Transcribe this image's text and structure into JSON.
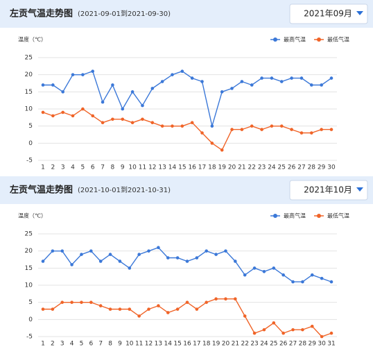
{
  "chart_data": [
    {
      "type": "line",
      "title": "左贡气温走势图",
      "subtitle": "(2021-09-01到2021-09-30)",
      "selector": "2021年09月",
      "ylabel": "温度（℃）",
      "categories": [
        "1",
        "2",
        "3",
        "4",
        "5",
        "6",
        "7",
        "8",
        "9",
        "10",
        "11",
        "12",
        "13",
        "14",
        "15",
        "16",
        "17",
        "18",
        "19",
        "20",
        "21",
        "22",
        "23",
        "24",
        "25",
        "26",
        "27",
        "28",
        "29",
        "30"
      ],
      "series": [
        {
          "name": "最高气温",
          "color": "#3b78d8",
          "values": [
            17,
            17,
            15,
            20,
            20,
            21,
            12,
            17,
            10,
            15,
            11,
            16,
            18,
            20,
            21,
            19,
            18,
            5,
            15,
            16,
            18,
            17,
            19,
            19,
            18,
            19,
            19,
            17,
            17,
            19
          ]
        },
        {
          "name": "最低气温",
          "color": "#f06428",
          "values": [
            9,
            8,
            9,
            8,
            10,
            8,
            6,
            7,
            7,
            6,
            7,
            6,
            5,
            5,
            5,
            6,
            3,
            0,
            -2,
            4,
            4,
            5,
            4,
            5,
            5,
            4,
            3,
            3,
            4,
            4
          ]
        }
      ],
      "ylim": [
        -5,
        25
      ],
      "yticks": [
        -5,
        0,
        5,
        10,
        15,
        20,
        25
      ],
      "grid": true
    },
    {
      "type": "line",
      "title": "左贡气温走势图",
      "subtitle": "(2021-10-01到2021-10-31)",
      "selector": "2021年10月",
      "ylabel": "温度（℃）",
      "categories": [
        "1",
        "2",
        "3",
        "4",
        "5",
        "6",
        "7",
        "8",
        "9",
        "10",
        "11",
        "12",
        "13",
        "14",
        "15",
        "16",
        "17",
        "18",
        "19",
        "20",
        "21",
        "22",
        "23",
        "24",
        "25",
        "26",
        "27",
        "28",
        "29",
        "30",
        "31"
      ],
      "series": [
        {
          "name": "最高气温",
          "color": "#3b78d8",
          "values": [
            17,
            20,
            20,
            16,
            19,
            20,
            17,
            19,
            17,
            15,
            19,
            20,
            21,
            18,
            18,
            17,
            18,
            20,
            19,
            20,
            17,
            13,
            15,
            14,
            15,
            13,
            11,
            11,
            13,
            12,
            11
          ]
        },
        {
          "name": "最低气温",
          "color": "#f06428",
          "values": [
            3,
            3,
            5,
            5,
            5,
            5,
            4,
            3,
            3,
            3,
            1,
            3,
            4,
            2,
            3,
            5,
            3,
            5,
            6,
            6,
            6,
            1,
            -4,
            -3,
            -1,
            -4,
            -3,
            -3,
            -2,
            -5,
            -4
          ]
        }
      ],
      "ylim": [
        -5,
        25
      ],
      "yticks": [
        -5,
        0,
        5,
        10,
        15,
        20,
        25
      ],
      "grid": true
    }
  ]
}
